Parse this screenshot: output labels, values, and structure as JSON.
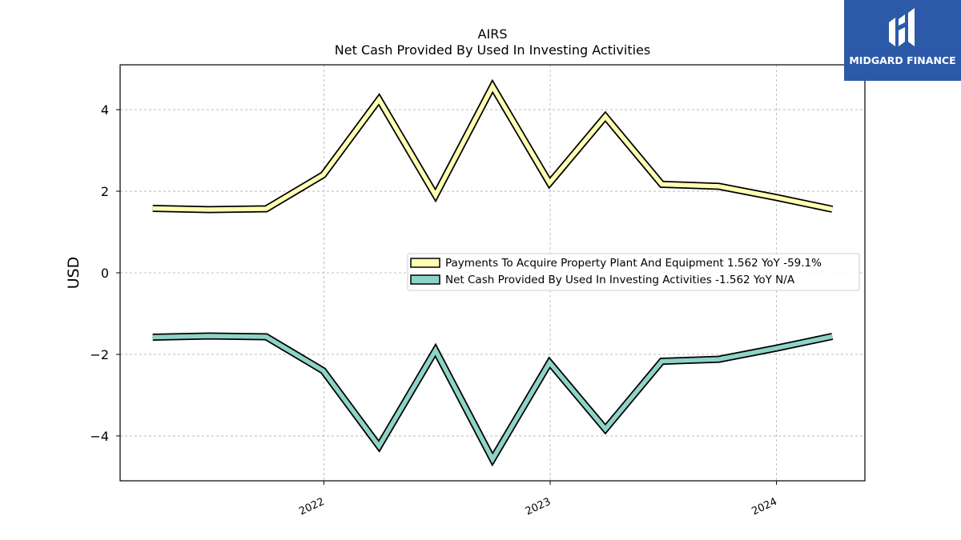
{
  "brand": {
    "name": "MIDGARD FINANCE",
    "logo_icon": "midgard-m-logo-icon",
    "bg_color": "#2c5aa8"
  },
  "chart_data": {
    "type": "line",
    "title": "AIRS",
    "subtitle": "Net Cash Provided By Used In Investing Activities",
    "xlabel": "",
    "ylabel": "USD",
    "x": [
      "2021-03-31",
      "2021-06-30",
      "2021-09-30",
      "2021-12-31",
      "2022-03-31",
      "2022-06-30",
      "2022-09-30",
      "2022-12-31",
      "2023-03-31",
      "2023-06-30",
      "2023-09-30",
      "2023-12-31",
      "2024-03-31"
    ],
    "x_ticks": [
      "2022",
      "2023",
      "2024"
    ],
    "y_ticks": [
      -4,
      -2,
      0,
      2,
      4
    ],
    "ylim": [
      -5.1,
      5.1
    ],
    "grid": true,
    "legend_position": "center-right",
    "series": [
      {
        "name": "Payments To Acquire Property Plant And Equipment  1.562 YoY -59.1%",
        "color": "#ffffb3",
        "values": [
          1.58,
          1.55,
          1.57,
          2.4,
          4.25,
          1.9,
          4.57,
          2.2,
          3.83,
          2.17,
          2.12,
          1.85,
          1.56
        ]
      },
      {
        "name": "Net Cash Provided By Used In Investing Activities  -1.562 YoY N/A",
        "color": "#8dd3c7",
        "values": [
          -1.58,
          -1.55,
          -1.57,
          -2.4,
          -4.25,
          -1.9,
          -4.57,
          -2.2,
          -3.83,
          -2.17,
          -2.12,
          -1.85,
          -1.56
        ]
      }
    ]
  }
}
